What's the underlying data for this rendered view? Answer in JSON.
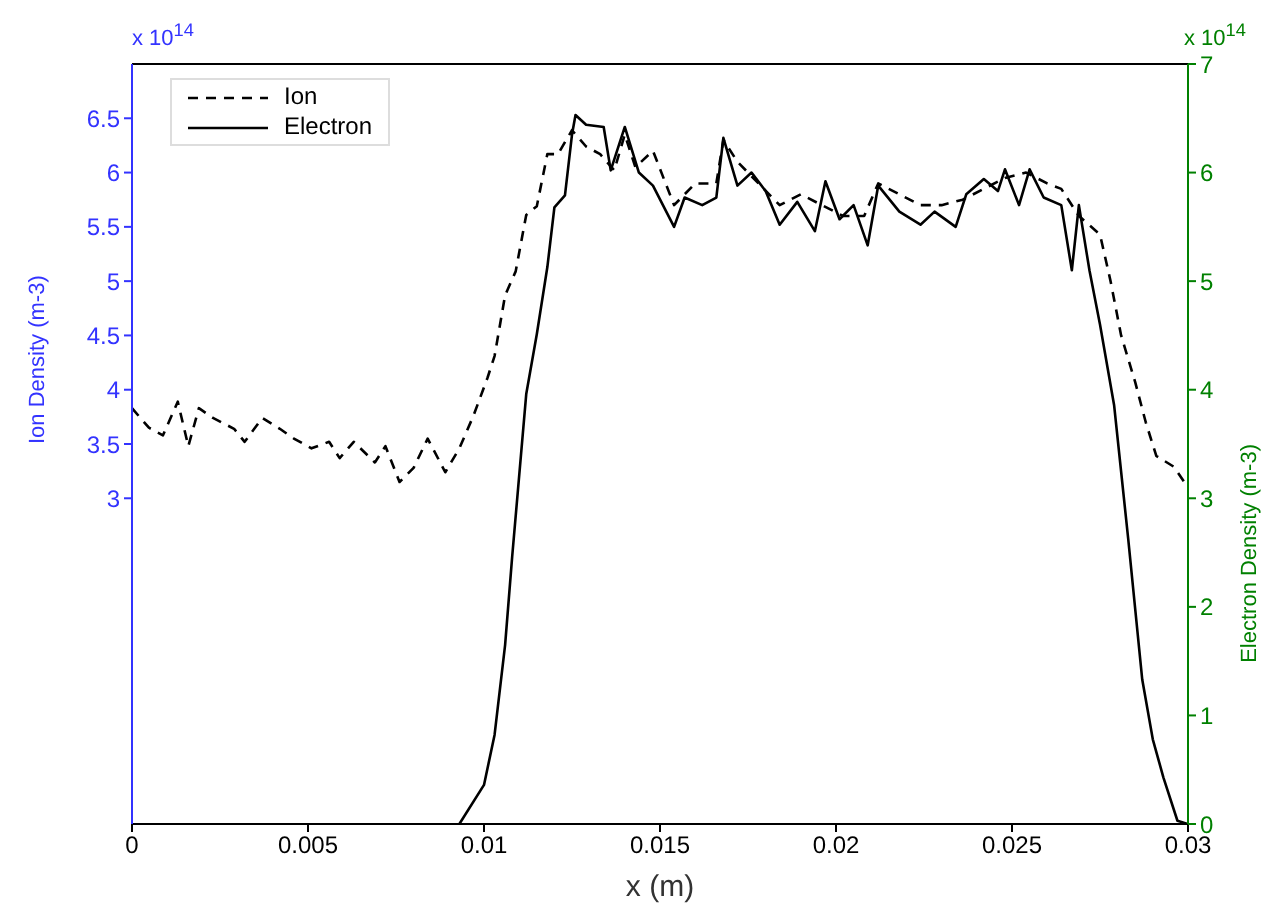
{
  "chart_data": {
    "type": "line",
    "xlabel": "x (m)",
    "ylabel": "Ion Density (m-3)",
    "y2label": "Electron Density (m-3)",
    "annotations": [
      "x 10$^{14}$",
      "x 10$^{14}$"
    ],
    "xlim": [
      0,
      0.03
    ],
    "xticks": [
      0,
      0.005,
      0.01,
      0.015,
      0.02,
      0.025,
      0.03
    ],
    "ylim": [
      0,
      7
    ],
    "yticks": [
      3,
      3.5,
      4,
      4.5,
      5,
      5.5,
      6,
      6.5
    ],
    "y2lim": [
      0,
      7
    ],
    "y2ticks": [
      0,
      1,
      2,
      3,
      4,
      5,
      6,
      7
    ],
    "grid": false,
    "legend": "top left",
    "marker": "none",
    "series": [
      {
        "name": "Ion",
        "color": "#000000",
        "line_style": "dashed",
        "x": [
          0,
          0.00048,
          0.00088,
          0.0013,
          0.0016,
          0.0019,
          0.0023,
          0.0029,
          0.0032,
          0.0037,
          0.0042,
          0.0046,
          0.0051,
          0.0056,
          0.0059,
          0.0063,
          0.0069,
          0.0072,
          0.0076,
          0.008,
          0.0084,
          0.0089,
          0.0093,
          0.0097,
          0.0101,
          0.0103,
          0.0106,
          0.0109,
          0.0112,
          0.0115,
          0.0118,
          0.0121,
          0.0125,
          0.0129,
          0.0133,
          0.0137,
          0.014,
          0.0143,
          0.0148,
          0.0154,
          0.016,
          0.0166,
          0.0168,
          0.0172,
          0.0178,
          0.0184,
          0.019,
          0.0196,
          0.0202,
          0.0208,
          0.0212,
          0.0218,
          0.0224,
          0.023,
          0.0236,
          0.0242,
          0.0248,
          0.0254,
          0.026,
          0.0264,
          0.0269,
          0.0275,
          0.0278,
          0.0281,
          0.0285,
          0.0288,
          0.0291,
          0.0296,
          0.03
        ],
        "values": [
          3.83,
          3.65,
          3.58,
          3.89,
          3.48,
          3.83,
          3.74,
          3.64,
          3.52,
          3.74,
          3.64,
          3.55,
          3.46,
          3.52,
          3.37,
          3.52,
          3.33,
          3.48,
          3.15,
          3.28,
          3.55,
          3.24,
          3.46,
          3.76,
          4.11,
          4.31,
          4.87,
          5.09,
          5.61,
          5.69,
          6.17,
          6.17,
          6.39,
          6.24,
          6.17,
          6.02,
          6.35,
          6.05,
          6.2,
          5.7,
          5.9,
          5.9,
          6.3,
          6.1,
          5.9,
          5.7,
          5.8,
          5.7,
          5.6,
          5.6,
          5.9,
          5.8,
          5.7,
          5.7,
          5.75,
          5.85,
          5.95,
          6.0,
          5.9,
          5.85,
          5.6,
          5.43,
          5.0,
          4.5,
          4.07,
          3.7,
          3.39,
          3.29,
          3.1
        ]
      },
      {
        "name": "Electron",
        "color": "#000000",
        "line_style": "solid",
        "axis": "y2",
        "x": [
          0.0093,
          0.01,
          0.0103,
          0.0106,
          0.0108,
          0.0112,
          0.0115,
          0.0118,
          0.012,
          0.0123,
          0.0125,
          0.0126,
          0.0129,
          0.0134,
          0.0136,
          0.014,
          0.0144,
          0.0148,
          0.0154,
          0.0157,
          0.0162,
          0.0166,
          0.0168,
          0.0172,
          0.0176,
          0.018,
          0.0184,
          0.0189,
          0.0194,
          0.0197,
          0.0201,
          0.0205,
          0.0209,
          0.0212,
          0.0218,
          0.0224,
          0.0228,
          0.0234,
          0.0237,
          0.0242,
          0.0246,
          0.0248,
          0.0252,
          0.0255,
          0.0259,
          0.0264,
          0.0267,
          0.0269,
          0.0272,
          0.0275,
          0.0279,
          0.0283,
          0.0287,
          0.029,
          0.0293,
          0.0297,
          0.03
        ],
        "values": [
          0,
          0.36,
          0.82,
          1.65,
          2.46,
          3.96,
          4.51,
          5.13,
          5.68,
          5.79,
          6.35,
          6.53,
          6.44,
          6.42,
          6.02,
          6.42,
          6.0,
          5.88,
          5.5,
          5.77,
          5.7,
          5.77,
          6.32,
          5.88,
          6.0,
          5.83,
          5.52,
          5.73,
          5.46,
          5.92,
          5.57,
          5.7,
          5.33,
          5.88,
          5.64,
          5.52,
          5.64,
          5.5,
          5.8,
          5.94,
          5.83,
          6.03,
          5.7,
          6.03,
          5.77,
          5.7,
          5.1,
          5.7,
          5.1,
          4.6,
          3.86,
          2.63,
          1.33,
          0.78,
          0.43,
          0.03,
          0
        ]
      }
    ]
  }
}
